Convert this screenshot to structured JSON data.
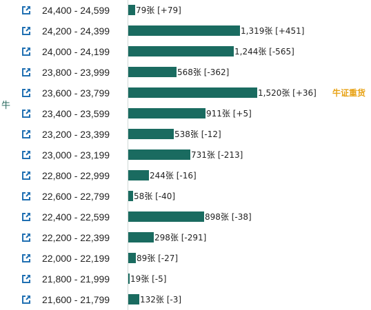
{
  "side_label": "牛",
  "icon_name": "external-link-icon",
  "colors": {
    "bar": "#1a6b60",
    "icon": "#1f6fb2",
    "badge": "#e8a317"
  },
  "chart_data": {
    "type": "bar",
    "orientation": "horizontal",
    "unit": "张",
    "categories": [
      "24,400 - 24,599",
      "24,200 - 24,399",
      "24,000 - 24,199",
      "23,800 - 23,999",
      "23,600 - 23,799",
      "23,400 - 23,599",
      "23,200 - 23,399",
      "23,000 - 23,199",
      "22,800 - 22,999",
      "22,600 - 22,799",
      "22,400 - 22,599",
      "22,200 - 22,399",
      "22,000 - 22,199",
      "21,800 - 21,999",
      "21,600 - 21,799"
    ],
    "values": [
      79,
      1319,
      1244,
      568,
      1520,
      911,
      538,
      731,
      244,
      58,
      898,
      298,
      89,
      19,
      132
    ],
    "value_labels": [
      "79张 [+79]",
      "1,319张 [+451]",
      "1,244张 [-565]",
      "568张 [-362]",
      "1,520张 [+36]",
      "911张 [+5]",
      "538张 [-12]",
      "731张 [-213]",
      "244张 [-16]",
      "58张 [-40]",
      "898张 [-38]",
      "298张 [-291]",
      "89张 [-27]",
      "19张 [-5]",
      "132张 [-3]"
    ],
    "badges": [
      "",
      "",
      "",
      "",
      "牛证重货",
      "",
      "",
      "",
      "",
      "",
      "",
      "",
      "",
      "",
      ""
    ],
    "xlim": [
      0,
      1520
    ]
  }
}
